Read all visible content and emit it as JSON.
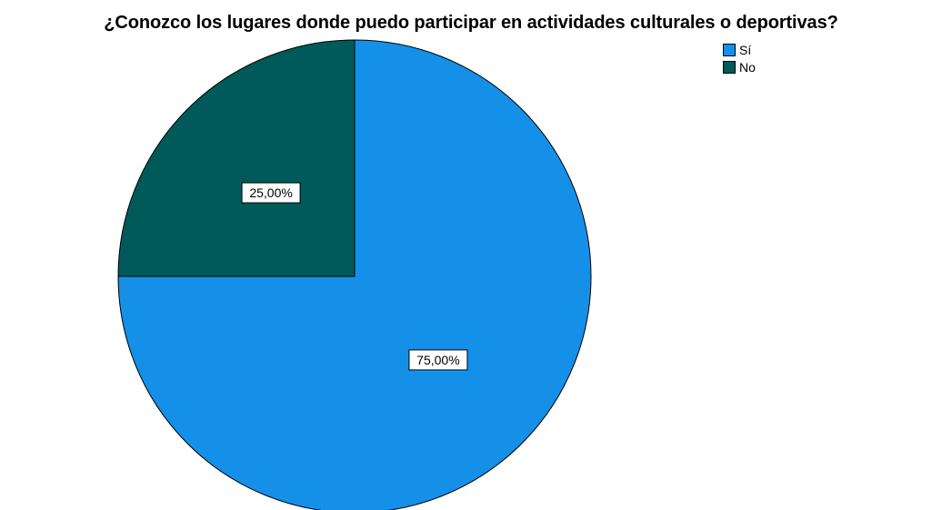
{
  "chart_data": {
    "type": "pie",
    "title": "¿Conozco los lugares donde puedo participar en actividades culturales o deportivas?",
    "categories": [
      "Sí",
      "No"
    ],
    "values": [
      75.0,
      25.0
    ],
    "data_labels": [
      "75,00%",
      "25,00%"
    ],
    "colors": [
      "#1490e8",
      "#005a5a"
    ],
    "legend_position": "top-right",
    "start_angle_deg": 0,
    "direction": "clockwise"
  }
}
